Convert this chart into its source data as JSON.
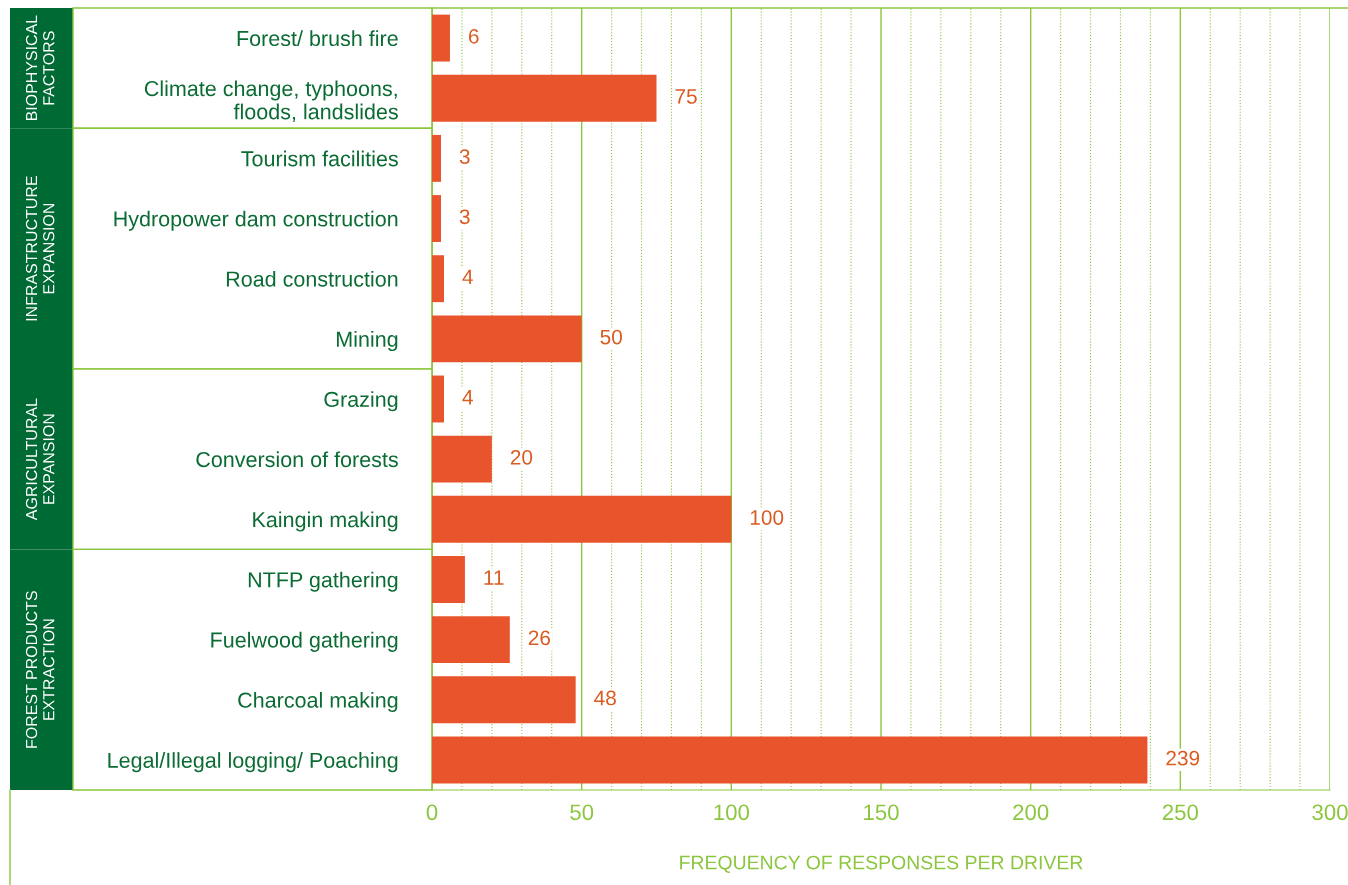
{
  "chart_data": {
    "type": "bar",
    "orientation": "horizontal",
    "categories": [
      "Forest/ brush fire",
      "Climate change, typhoons,\nfloods, landslides",
      "Tourism facilities",
      "Hydropower dam construction",
      "Road construction",
      "Mining",
      "Grazing",
      "Conversion of forests",
      "Kaingin making",
      "NTFP gathering",
      "Fuelwood gathering",
      "Charcoal making",
      "Legal/Illegal logging/ Poaching"
    ],
    "values": [
      6,
      75,
      3,
      3,
      4,
      50,
      4,
      20,
      100,
      11,
      26,
      48,
      239
    ],
    "color": "#e8542c",
    "data_labels": true,
    "xlabel": "FREQUENCY OF RESPONSES PER DRIVER",
    "xlim": [
      0,
      300
    ],
    "xticks": [
      0,
      {
        "value": 10,
        "label": null
      },
      {
        "value": 20,
        "label": null
      },
      {
        "value": 30,
        "label": null
      },
      {
        "value": 40,
        "label": null
      },
      50,
      {
        "value": 60,
        "label": null
      },
      {
        "value": 70,
        "label": null
      },
      {
        "value": 80,
        "label": null
      },
      {
        "value": 90,
        "label": null
      },
      100,
      {
        "value": 110,
        "label": null
      },
      {
        "value": 120,
        "label": null
      },
      {
        "value": 130,
        "label": null
      },
      {
        "value": 140,
        "label": null
      },
      150,
      {
        "value": 160,
        "label": null
      },
      {
        "value": 170,
        "label": null
      },
      {
        "value": 180,
        "label": null
      },
      {
        "value": 190,
        "label": null
      },
      200,
      {
        "value": 210,
        "label": null
      },
      {
        "value": 220,
        "label": null
      },
      {
        "value": 230,
        "label": null
      },
      {
        "value": 240,
        "label": null
      },
      250,
      {
        "value": 260,
        "label": null
      },
      {
        "value": 270,
        "label": null
      },
      {
        "value": 280,
        "label": null
      },
      {
        "value": 290,
        "label": null
      },
      300
    ],
    "grid": "x",
    "annotations": [
      "BIOPHYSICAL\nFACTORS",
      "INFRASTRUCTURE\nEXPANSION",
      "AGRICULTURAL\nEXPANSION",
      "FOREST PRODUCTS\nEXTRACTION"
    ]
  }
}
